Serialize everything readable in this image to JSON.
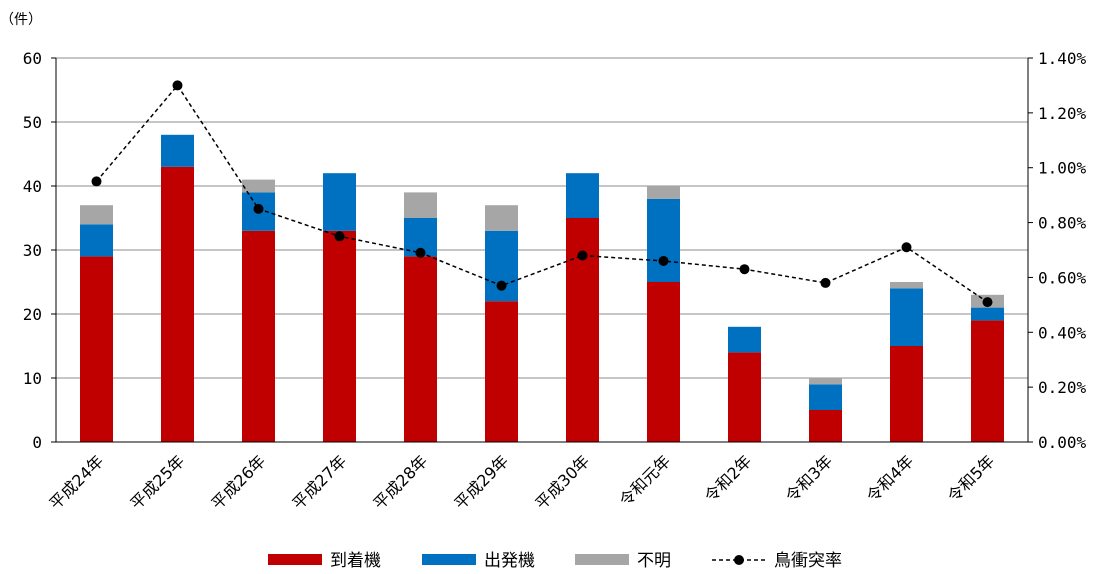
{
  "chart_data": {
    "type": "bar",
    "stacked": true,
    "y_unit_label": "（件）",
    "categories": [
      "平成24年",
      "平成25年",
      "平成26年",
      "平成27年",
      "平成28年",
      "平成29年",
      "平成30年",
      "令和元年",
      "令和2年",
      "令和3年",
      "令和4年",
      "令和5年"
    ],
    "series": [
      {
        "name": "到着機",
        "color": "#C00000",
        "values": [
          29,
          43,
          33,
          33,
          29,
          22,
          35,
          25,
          14,
          5,
          15,
          19
        ]
      },
      {
        "name": "出発機",
        "color": "#0070C0",
        "values": [
          5,
          5,
          6,
          9,
          6,
          11,
          7,
          13,
          4,
          4,
          9,
          2
        ]
      },
      {
        "name": "不明",
        "color": "#A6A6A6",
        "values": [
          3,
          0,
          2,
          0,
          4,
          4,
          0,
          2,
          0,
          1,
          1,
          2
        ]
      }
    ],
    "line_series": {
      "name": "鳥衝突率",
      "color": "#000000",
      "axis": "right",
      "values": [
        0.95,
        1.3,
        0.85,
        0.75,
        0.69,
        0.57,
        0.68,
        0.66,
        0.63,
        0.58,
        0.71,
        0.51
      ]
    },
    "ylim": [
      0,
      60
    ],
    "yticks": [
      0,
      10,
      20,
      30,
      40,
      50,
      60
    ],
    "y2lim": [
      0,
      1.4
    ],
    "y2ticks": [
      "0.00%",
      "0.20%",
      "0.40%",
      "0.60%",
      "0.80%",
      "1.00%",
      "1.20%",
      "1.40%"
    ],
    "grid": true,
    "legend_position": "bottom"
  }
}
